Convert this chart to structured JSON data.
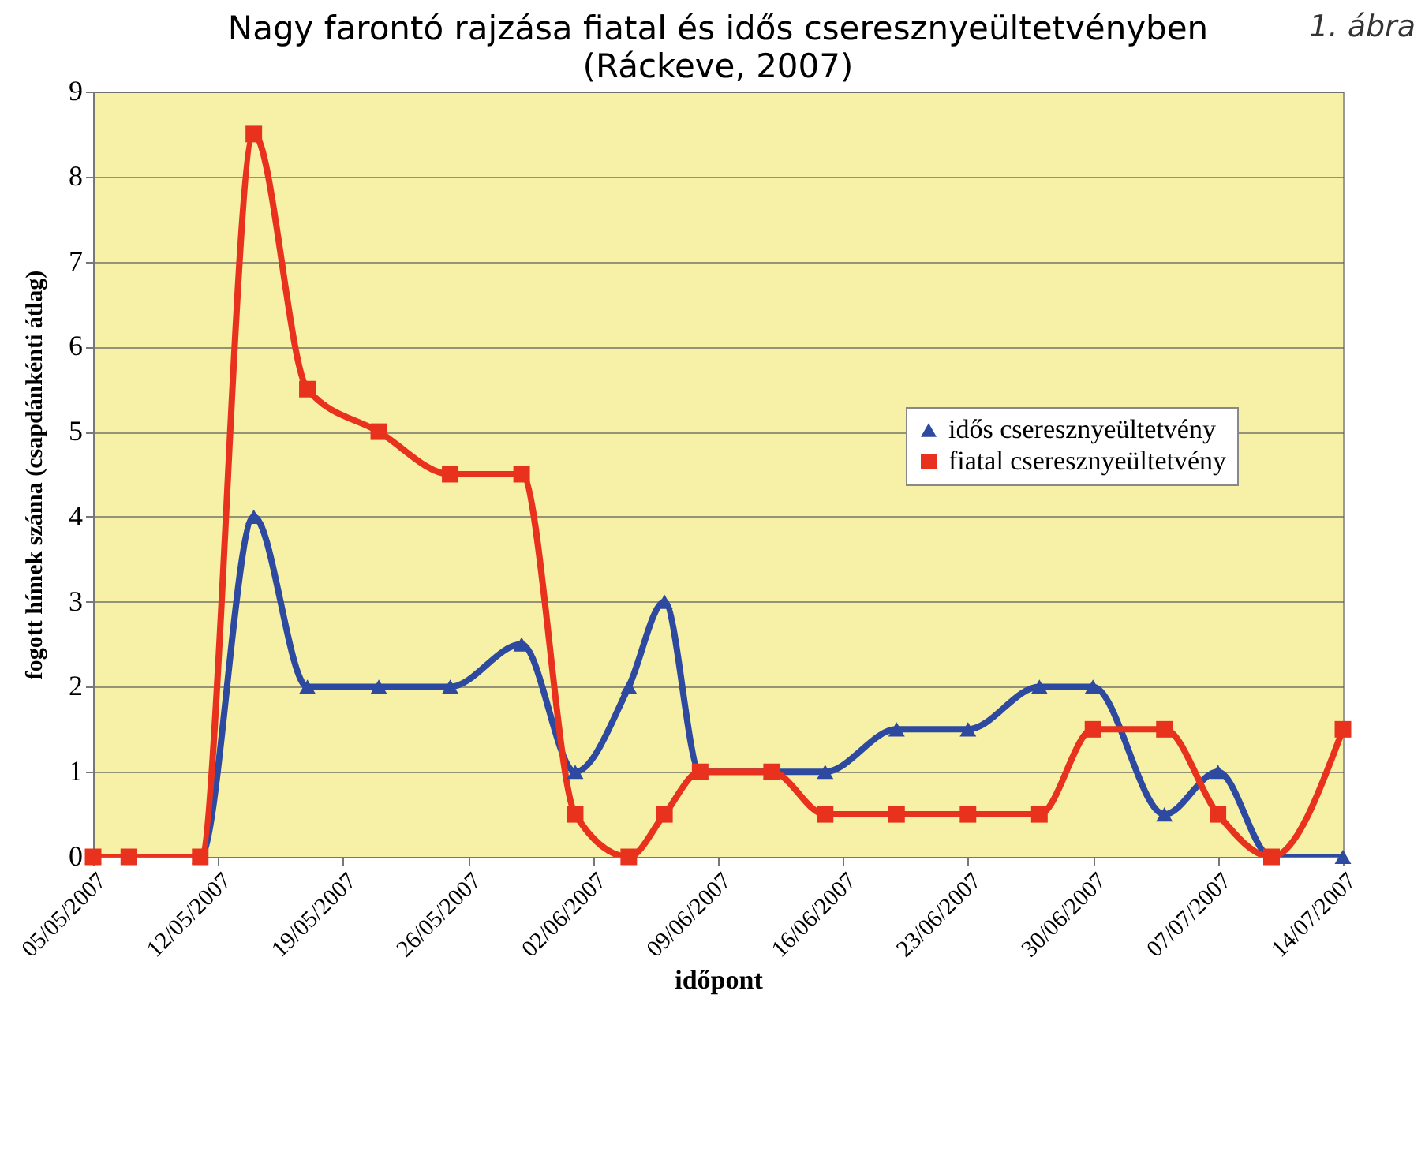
{
  "chart_data": {
    "type": "line",
    "title": "Nagy farontó rajzása fiatal és idős cseresznyeültetvényben",
    "subtitle": "(Ráckeve, 2007)",
    "annotations": [
      "1. ábra"
    ],
    "xlabel": "időpont",
    "ylabel": "fogott hímek száma (csapdánkénti átlag)",
    "x": [
      "2007-05-05",
      "2007-05-07",
      "2007-05-11",
      "2007-05-14",
      "2007-05-17",
      "2007-05-21",
      "2007-05-25",
      "2007-05-29",
      "2007-06-01",
      "2007-06-04",
      "2007-06-06",
      "2007-06-08",
      "2007-06-12",
      "2007-06-15",
      "2007-06-19",
      "2007-06-23",
      "2007-06-27",
      "2007-06-30",
      "2007-07-04",
      "2007-07-07",
      "2007-07-10",
      "2007-07-14"
    ],
    "series": [
      {
        "name": "idős cseresznyeültetvény",
        "color": "#2e4aa0",
        "marker": "triangle",
        "values": [
          0,
          0,
          0,
          4,
          2,
          2,
          2,
          2.5,
          1,
          2,
          3,
          1,
          1,
          1,
          1.5,
          1.5,
          2,
          2,
          0.5,
          1,
          0,
          0
        ]
      },
      {
        "name": "fiatal cseresznyeültetvény",
        "color": "#e8321e",
        "marker": "square",
        "values": [
          0,
          0,
          0,
          8.5,
          5.5,
          5,
          4.5,
          4.5,
          0.5,
          0,
          0.5,
          1,
          1,
          0.5,
          0.5,
          0.5,
          0.5,
          1.5,
          1.5,
          0.5,
          0,
          1.5
        ]
      }
    ],
    "xlim": [
      "2007-05-05",
      "2007-07-14"
    ],
    "xticks": [
      {
        "value": "2007-05-05",
        "label": "05/05/2007"
      },
      {
        "value": "2007-05-12",
        "label": "12/05/2007"
      },
      {
        "value": "2007-05-19",
        "label": "19/05/2007"
      },
      {
        "value": "2007-05-26",
        "label": "26/05/2007"
      },
      {
        "value": "2007-06-02",
        "label": "02/06/2007"
      },
      {
        "value": "2007-06-09",
        "label": "09/06/2007"
      },
      {
        "value": "2007-06-16",
        "label": "16/06/2007"
      },
      {
        "value": "2007-06-23",
        "label": "23/06/2007"
      },
      {
        "value": "2007-06-30",
        "label": "30/06/2007"
      },
      {
        "value": "2007-07-07",
        "label": "07/07/2007"
      },
      {
        "value": "2007-07-14",
        "label": "14/07/2007"
      }
    ],
    "ylim": [
      0,
      9
    ],
    "yticks": [
      0,
      1,
      2,
      3,
      4,
      5,
      6,
      7,
      8,
      9
    ],
    "grid": "y",
    "legend": "top right"
  }
}
